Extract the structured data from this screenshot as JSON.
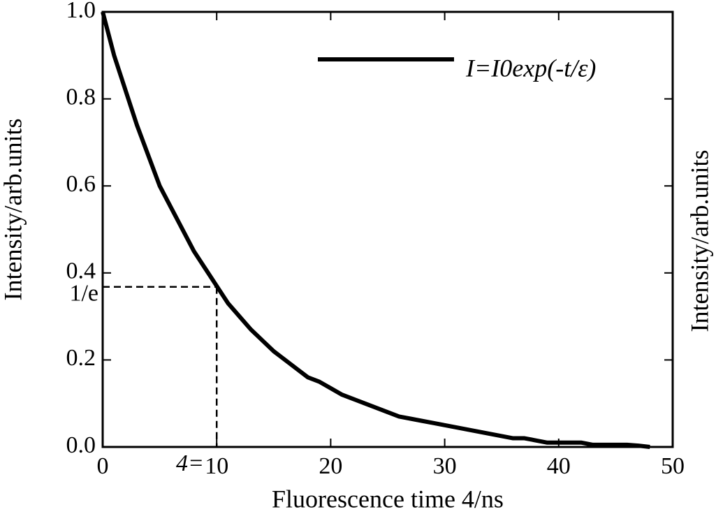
{
  "chart_data": {
    "type": "line",
    "x_label": "Fluorescence time 4/ns",
    "y_label": "Intensity/arb.units",
    "y2_label": "Intensity/arb.units",
    "x": [
      0,
      1,
      2,
      3,
      4,
      5,
      6,
      7,
      8,
      9,
      10,
      11,
      12,
      13,
      14,
      15,
      16,
      17,
      18,
      19,
      20,
      21,
      22,
      23,
      24,
      25,
      26,
      27,
      28,
      29,
      30,
      31,
      32,
      33,
      34,
      35,
      36,
      37,
      38,
      39,
      40,
      41,
      42,
      43,
      44,
      45,
      46,
      47,
      48
    ],
    "series": [
      {
        "name": "I=I0exp(-t/ε)",
        "color": "#000000",
        "values": [
          1.0,
          0.9,
          0.82,
          0.74,
          0.67,
          0.6,
          0.55,
          0.5,
          0.45,
          0.41,
          0.37,
          0.33,
          0.3,
          0.27,
          0.245,
          0.22,
          0.2,
          0.18,
          0.16,
          0.15,
          0.135,
          0.12,
          0.11,
          0.1,
          0.09,
          0.08,
          0.07,
          0.065,
          0.06,
          0.055,
          0.05,
          0.045,
          0.04,
          0.035,
          0.03,
          0.025,
          0.02,
          0.02,
          0.015,
          0.01,
          0.01,
          0.01,
          0.01,
          0.005,
          0.005,
          0.005,
          0.005,
          0.003,
          0
        ]
      }
    ],
    "xlim": [
      0,
      50
    ],
    "ylim": [
      0,
      1
    ],
    "xticks": [
      0,
      10,
      20,
      30,
      40,
      50
    ],
    "yticks": [
      {
        "value": 0,
        "label": "0.0"
      },
      0.2,
      0.4,
      0.6,
      0.8,
      {
        "value": 1,
        "label": "1.0"
      }
    ],
    "grid": false,
    "legend": "upper right",
    "marker": {
      "x": 10,
      "y": 0.368,
      "label": "1/e"
    },
    "x_annotation": "4="
  }
}
